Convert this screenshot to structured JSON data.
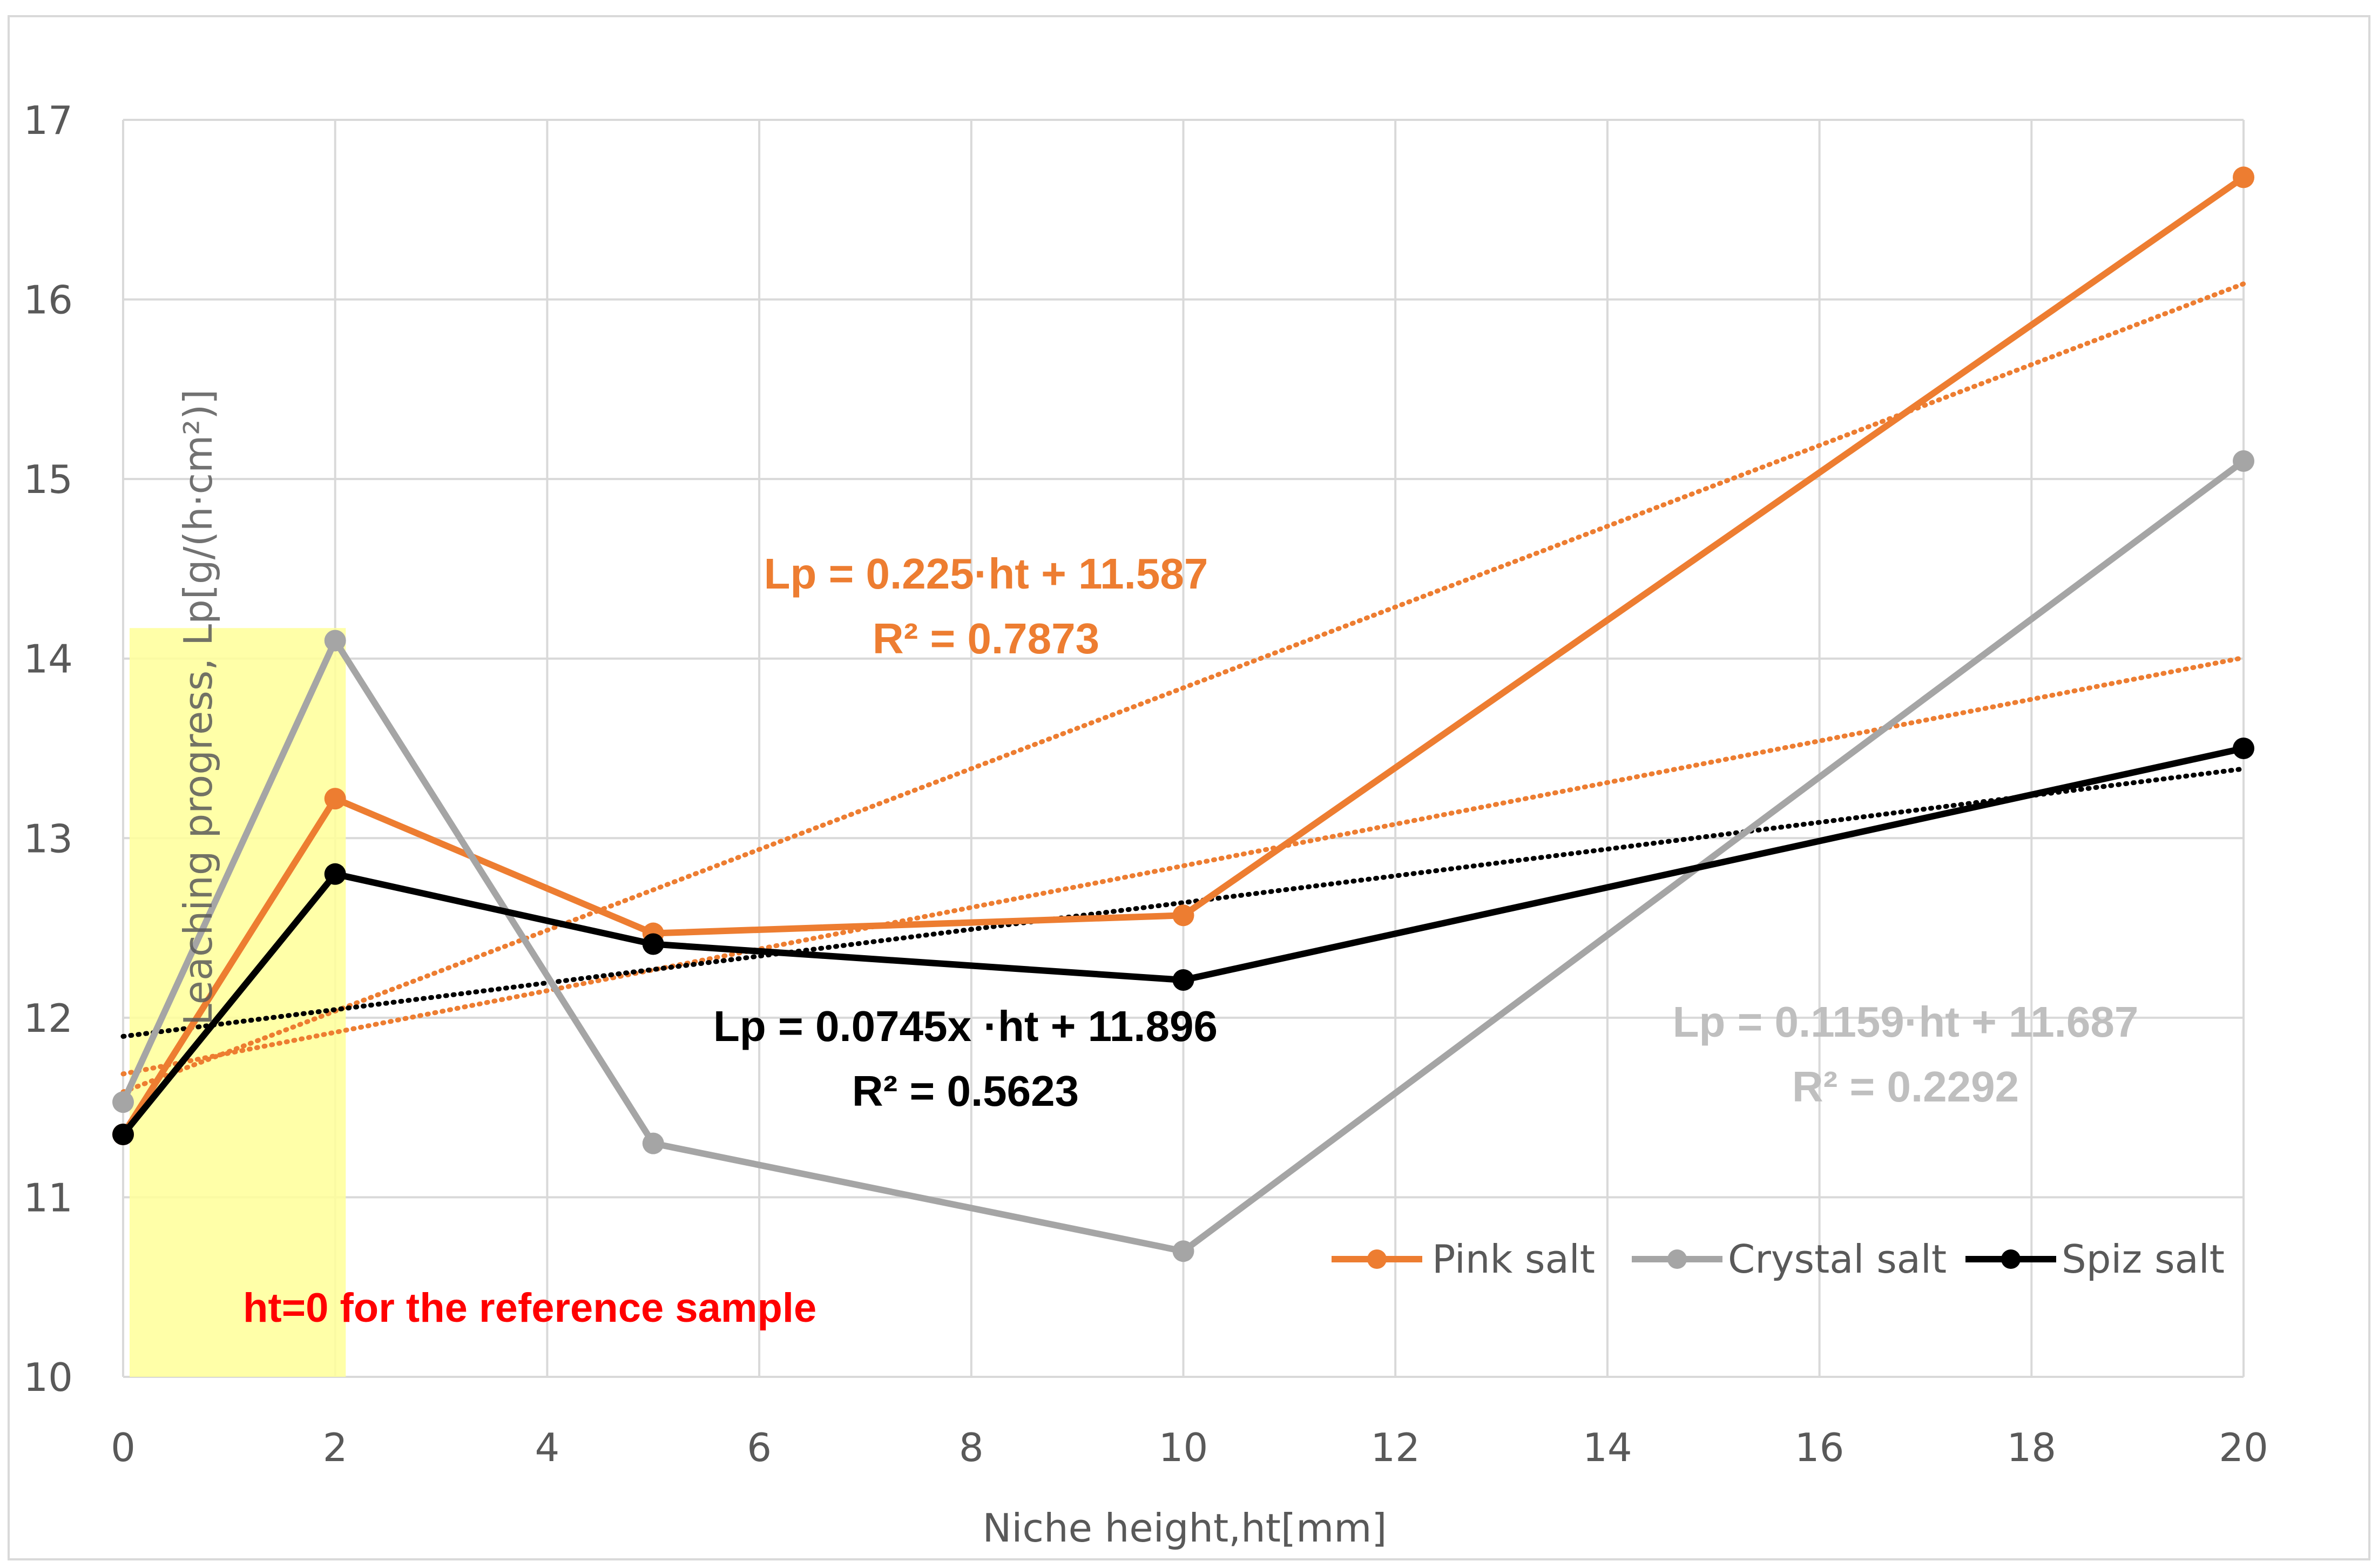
{
  "chart_data": {
    "type": "line",
    "title": "",
    "xlabel": "Niche height,ht[mm]",
    "ylabel": "Leaching progress, Lp[g/(h·cm²)]",
    "xlim": [
      0,
      20
    ],
    "ylim": [
      10,
      17
    ],
    "x_ticks": [
      "0",
      "2",
      "4",
      "6",
      "8",
      "10",
      "12",
      "14",
      "16",
      "18",
      "20"
    ],
    "y_ticks": [
      "10",
      "11",
      "12",
      "13",
      "14",
      "15",
      "16",
      "17"
    ],
    "grid": true,
    "legend_position": "lower-right",
    "x": [
      0,
      2,
      5,
      10,
      20
    ],
    "series": [
      {
        "name": "Pink salt",
        "color": "#ED7D31",
        "values": [
          11.35,
          13.22,
          12.47,
          12.57,
          16.68
        ]
      },
      {
        "name": "Crystal salt",
        "color": "#A5A5A5",
        "values": [
          11.53,
          14.1,
          11.3,
          10.7,
          15.1
        ]
      },
      {
        "name": "Spiz salt",
        "color": "#000000",
        "values": [
          11.35,
          12.8,
          12.41,
          12.21,
          13.5
        ]
      }
    ],
    "trendlines": [
      {
        "series": "Pink salt",
        "color": "#ED7D31",
        "slope": 0.225,
        "intercept": 11.587
      },
      {
        "series": "Crystal salt",
        "color": "#ED7D31",
        "slope": 0.1159,
        "intercept": 11.687
      },
      {
        "series": "Spiz salt",
        "color": "#000000",
        "slope": 0.0745,
        "intercept": 11.896
      }
    ],
    "annotations": {
      "pink_eq": "Lp = 0.225·ht + 11.587",
      "pink_r2": "R² = 0.7873",
      "spiz_eq": "Lp = 0.0745x ·ht + 11.896",
      "spiz_r2": "R² = 0.5623",
      "crystal_eq": "Lp = 0.1159·ht + 11.687",
      "crystal_r2": "R² = 0.2292",
      "reference_note": "ht=0 for the reference sample"
    },
    "highlight": {
      "x_range": [
        0,
        2.1
      ],
      "y_range": [
        10,
        14.17
      ],
      "color": "#FFFF99"
    },
    "colors": {
      "pink": "#ED7D31",
      "crystal": "#A5A5A5",
      "spiz": "#000000",
      "note": "#FF0000",
      "highlight": "#FFFF99"
    }
  }
}
